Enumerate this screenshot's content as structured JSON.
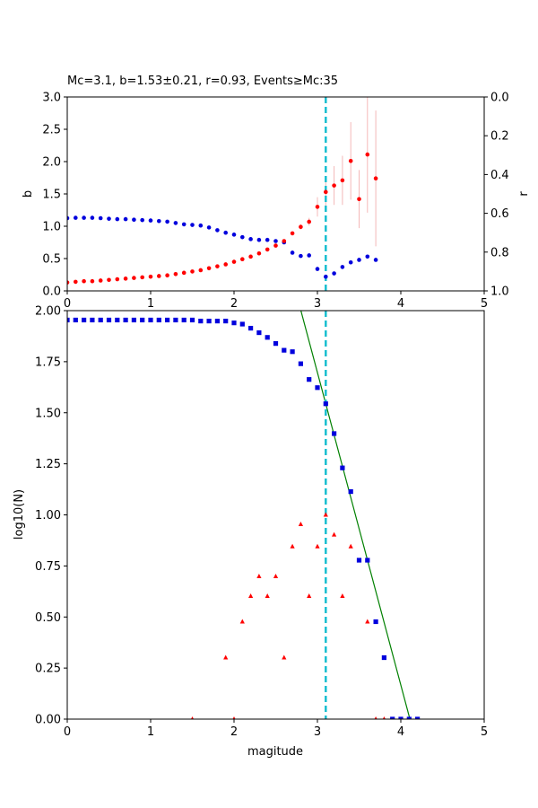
{
  "chart_data": [
    {
      "type": "scatter",
      "title": "Mc=3.1, b=1.53±0.21, r=0.93, Events≥Mc:35",
      "xlim": [
        0,
        5
      ],
      "xticks": [
        "0",
        "1",
        "2",
        "3",
        "4",
        "5"
      ],
      "ylabel": "b",
      "ylim": [
        0,
        3.0
      ],
      "yticks": [
        "0.0",
        "0.5",
        "1.0",
        "1.5",
        "2.0",
        "2.5",
        "3.0"
      ],
      "y2label": "r",
      "y2lim": [
        1.0,
        0.0
      ],
      "y2ticks": [
        "0.0",
        "0.2",
        "0.4",
        "0.6",
        "0.8",
        "1.0"
      ],
      "mc_line": 3.1,
      "colors": {
        "b": "#ff0000",
        "r": "#0000dd",
        "err": "#f4b8b8",
        "mc": "#17becf"
      },
      "b_series": {
        "x": [
          0.0,
          0.1,
          0.2,
          0.3,
          0.4,
          0.5,
          0.6,
          0.7,
          0.8,
          0.9,
          1.0,
          1.1,
          1.2,
          1.3,
          1.4,
          1.5,
          1.6,
          1.7,
          1.8,
          1.9,
          2.0,
          2.1,
          2.2,
          2.3,
          2.4,
          2.5,
          2.6,
          2.7,
          2.8,
          2.9,
          3.0,
          3.1,
          3.2,
          3.3,
          3.4,
          3.5,
          3.6,
          3.7
        ],
        "y": [
          0.13,
          0.14,
          0.15,
          0.15,
          0.16,
          0.17,
          0.18,
          0.19,
          0.2,
          0.21,
          0.22,
          0.23,
          0.24,
          0.26,
          0.28,
          0.3,
          0.32,
          0.35,
          0.38,
          0.41,
          0.45,
          0.49,
          0.53,
          0.58,
          0.64,
          0.7,
          0.77,
          0.89,
          0.99,
          1.07,
          1.3,
          1.53,
          1.63,
          1.71,
          2.01,
          1.42,
          2.11,
          1.74
        ],
        "err": [
          0,
          0,
          0,
          0,
          0,
          0,
          0,
          0,
          0,
          0,
          0,
          0,
          0,
          0,
          0,
          0,
          0,
          0,
          0,
          0,
          0,
          0,
          0,
          0,
          0,
          0,
          0,
          0,
          0.04,
          0.06,
          0.15,
          0.21,
          0.3,
          0.38,
          0.6,
          0.45,
          0.9,
          1.05
        ]
      },
      "r_series": {
        "x": [
          0.0,
          0.1,
          0.2,
          0.3,
          0.4,
          0.5,
          0.6,
          0.7,
          0.8,
          0.9,
          1.0,
          1.1,
          1.2,
          1.3,
          1.4,
          1.5,
          1.6,
          1.7,
          1.8,
          1.9,
          2.0,
          2.1,
          2.2,
          2.3,
          2.4,
          2.5,
          2.6,
          2.7,
          2.8,
          2.9,
          3.0,
          3.1,
          3.2,
          3.3,
          3.4,
          3.5,
          3.6,
          3.7
        ],
        "y": [
          0.625,
          0.623,
          0.623,
          0.623,
          0.625,
          0.628,
          0.63,
          0.63,
          0.633,
          0.635,
          0.637,
          0.64,
          0.643,
          0.65,
          0.657,
          0.66,
          0.663,
          0.673,
          0.687,
          0.7,
          0.71,
          0.723,
          0.733,
          0.737,
          0.737,
          0.743,
          0.75,
          0.803,
          0.82,
          0.817,
          0.887,
          0.927,
          0.91,
          0.877,
          0.853,
          0.84,
          0.823,
          0.84
        ]
      }
    },
    {
      "type": "scatter",
      "xlabel": "magitude",
      "ylabel": "log10(N)",
      "xlim": [
        0,
        5
      ],
      "xticks": [
        "0",
        "1",
        "2",
        "3",
        "4",
        "5"
      ],
      "ylim": [
        0,
        2.0
      ],
      "yticks": [
        "0.00",
        "0.25",
        "0.50",
        "0.75",
        "1.00",
        "1.25",
        "1.50",
        "1.75",
        "2.00"
      ],
      "mc_line": 3.1,
      "colors": {
        "cum": "#0000dd",
        "noncum": "#ff0000",
        "fit": "#008000",
        "mc": "#17becf"
      },
      "cumulative": {
        "x": [
          0.0,
          0.1,
          0.2,
          0.3,
          0.4,
          0.5,
          0.6,
          0.7,
          0.8,
          0.9,
          1.0,
          1.1,
          1.2,
          1.3,
          1.4,
          1.5,
          1.6,
          1.7,
          1.8,
          1.9,
          2.0,
          2.1,
          2.2,
          2.3,
          2.4,
          2.5,
          2.6,
          2.7,
          2.8,
          2.9,
          3.0,
          3.1,
          3.2,
          3.3,
          3.4,
          3.5,
          3.6,
          3.7,
          3.8,
          3.9,
          4.0,
          4.1,
          4.2
        ],
        "y": [
          1.954,
          1.954,
          1.954,
          1.954,
          1.954,
          1.954,
          1.954,
          1.954,
          1.954,
          1.954,
          1.954,
          1.954,
          1.954,
          1.954,
          1.954,
          1.954,
          1.949,
          1.949,
          1.949,
          1.949,
          1.94,
          1.934,
          1.914,
          1.892,
          1.869,
          1.839,
          1.806,
          1.799,
          1.74,
          1.663,
          1.623,
          1.544,
          1.398,
          1.23,
          1.114,
          0.778,
          0.778,
          0.477,
          0.301,
          0.0,
          0.0,
          0.0,
          0.0
        ]
      },
      "noncumulative": {
        "x": [
          1.5,
          1.9,
          2.0,
          2.1,
          2.2,
          2.3,
          2.4,
          2.5,
          2.6,
          2.7,
          2.8,
          2.9,
          3.0,
          3.1,
          3.2,
          3.3,
          3.4,
          3.6,
          3.7,
          3.8
        ],
        "y": [
          0.0,
          0.301,
          0.0,
          0.477,
          0.602,
          0.699,
          0.602,
          0.699,
          0.301,
          0.845,
          0.954,
          0.602,
          0.845,
          1.0,
          0.903,
          0.602,
          0.845,
          0.477,
          0.0,
          0.0
        ]
      },
      "fit_line": {
        "intercept": 6.287,
        "slope": -1.53,
        "xmax": 4.109
      }
    }
  ]
}
